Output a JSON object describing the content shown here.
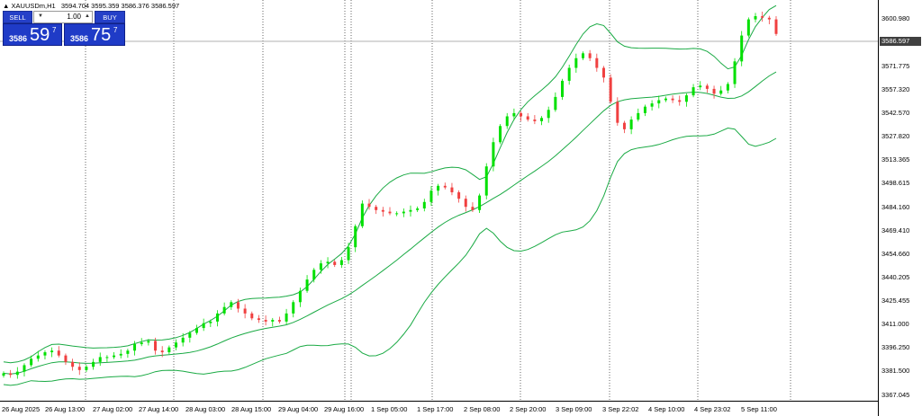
{
  "symbol_header": {
    "symbol": "XAUUSDm,H1",
    "ohlc": "3594.704 3595.359 3586.376 3586.597"
  },
  "trade_panel": {
    "sell_label": "SELL",
    "buy_label": "BUY",
    "lot": "1.00",
    "sell_price_prefix": "3586",
    "sell_price_big": "59",
    "sell_price_sup": "7",
    "buy_price_prefix": "3586",
    "buy_price_big": "75",
    "buy_price_sup": "7"
  },
  "price_axis": {
    "labels": [
      "3600.980",
      "3571.775",
      "3557.320",
      "3542.570",
      "3527.820",
      "3513.365",
      "3498.615",
      "3484.160",
      "3469.410",
      "3454.660",
      "3440.205",
      "3425.455",
      "3411.000",
      "3396.250",
      "3381.500",
      "3367.045"
    ],
    "current_price": "3586.597"
  },
  "time_axis": {
    "labels": [
      "26 Aug 2025",
      "26 Aug 13:00",
      "27 Aug 02:00",
      "27 Aug 14:00",
      "28 Aug 03:00",
      "28 Aug 15:00",
      "29 Aug 04:00",
      "29 Aug 16:00",
      "1 Sep 05:00",
      "1 Sep 17:00",
      "2 Sep 08:00",
      "2 Sep 20:00",
      "3 Sep 09:00",
      "3 Sep 22:02",
      "4 Sep 10:00",
      "4 Sep 23:02",
      "5 Sep 11:00"
    ]
  },
  "colors": {
    "bull": "#00e000",
    "bear": "#f04040",
    "band": "#1aaa44",
    "grid": "#000000",
    "panel": "#1f3bc7"
  },
  "chart_data": {
    "type": "candlestick",
    "price_range": [
      3360,
      3608
    ],
    "bands_series": [
      "upper",
      "middle",
      "lower"
    ],
    "close": [
      3377,
      3376,
      3378,
      3382,
      3386,
      3388,
      3390,
      3391,
      3388,
      3384,
      3381,
      3379,
      3381,
      3384,
      3387,
      3387,
      3388,
      3389,
      3391,
      3395,
      3396,
      3397,
      3391,
      3390,
      3393,
      3396,
      3399,
      3402,
      3405,
      3408,
      3409,
      3414,
      3418,
      3421,
      3417,
      3414,
      3411,
      3410,
      3409,
      3410,
      3409,
      3414,
      3421,
      3428,
      3435,
      3441,
      3445,
      3446,
      3444,
      3447,
      3455,
      3468,
      3482,
      3480,
      3478,
      3477,
      3476,
      3476,
      3477,
      3478,
      3479,
      3483,
      3490,
      3493,
      3492,
      3489,
      3485,
      3480,
      3478,
      3487,
      3505,
      3520,
      3530,
      3536,
      3538,
      3536,
      3534,
      3533,
      3535,
      3540,
      3548,
      3558,
      3566,
      3572,
      3575,
      3572,
      3566,
      3560,
      3545,
      3532,
      3528,
      3534,
      3538,
      3542,
      3544,
      3546,
      3547,
      3546,
      3545,
      3549,
      3554,
      3555,
      3553,
      3550,
      3552,
      3556,
      3570,
      3586,
      3596,
      3598,
      3597,
      3596,
      3587
    ],
    "current": 3586.597
  }
}
